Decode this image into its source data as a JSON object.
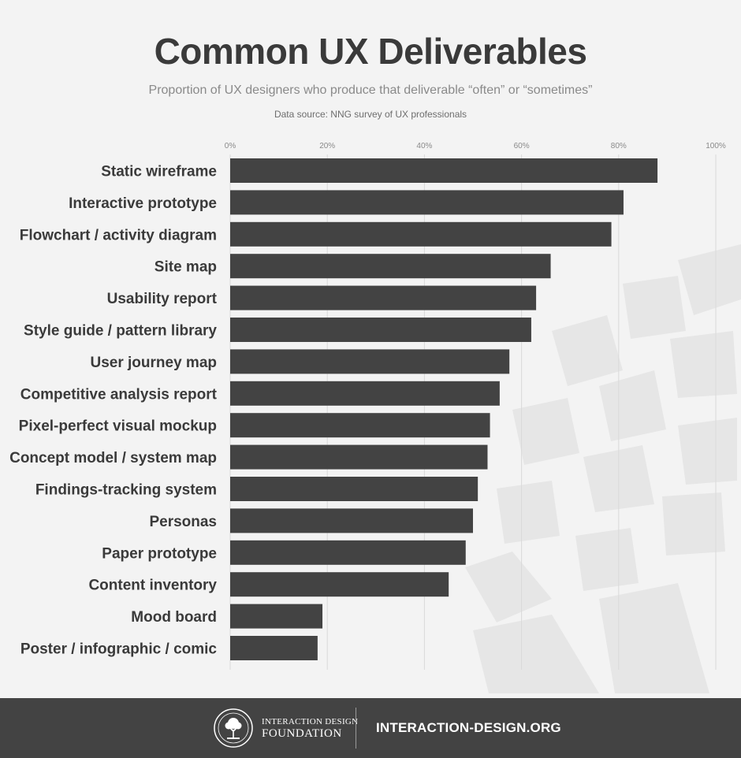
{
  "title": "Common UX Deliverables",
  "subtitle": "Proportion of UX designers who produce that deliverable “often” or “sometimes”",
  "source": "Data source: NNG survey of UX professionals",
  "colors": {
    "bar": "#434343",
    "grid": "#d9d9d9",
    "background": "#f3f3f3",
    "footer": "#434343"
  },
  "chart_data": {
    "type": "bar",
    "orientation": "horizontal",
    "categories": [
      "Static wireframe",
      "Interactive prototype",
      "Flowchart / activity diagram",
      "Site map",
      "Usability report",
      "Style guide / pattern library",
      "User journey map",
      "Competitive analysis report",
      "Pixel-perfect visual mockup",
      "Concept model / system map",
      "Findings-tracking system",
      "Personas",
      "Paper prototype",
      "Content inventory",
      "Mood board",
      "Poster / infographic / comic"
    ],
    "values": [
      88,
      81,
      78.5,
      66,
      63,
      62,
      57.5,
      55.5,
      53.5,
      53,
      51,
      50,
      48.5,
      45,
      19,
      18
    ],
    "xlim": [
      0,
      100
    ],
    "ticks": [
      0,
      20,
      40,
      60,
      80,
      100
    ],
    "tick_labels": [
      "0%",
      "20%",
      "40%",
      "60%",
      "80%",
      "100%"
    ],
    "grid": true
  },
  "footer": {
    "org_line1": "INTERACTION DESIGN",
    "org_line2": "FOUNDATION",
    "logo_icon": "tree-seal-icon",
    "site": "INTERACTION-DESIGN.ORG"
  }
}
